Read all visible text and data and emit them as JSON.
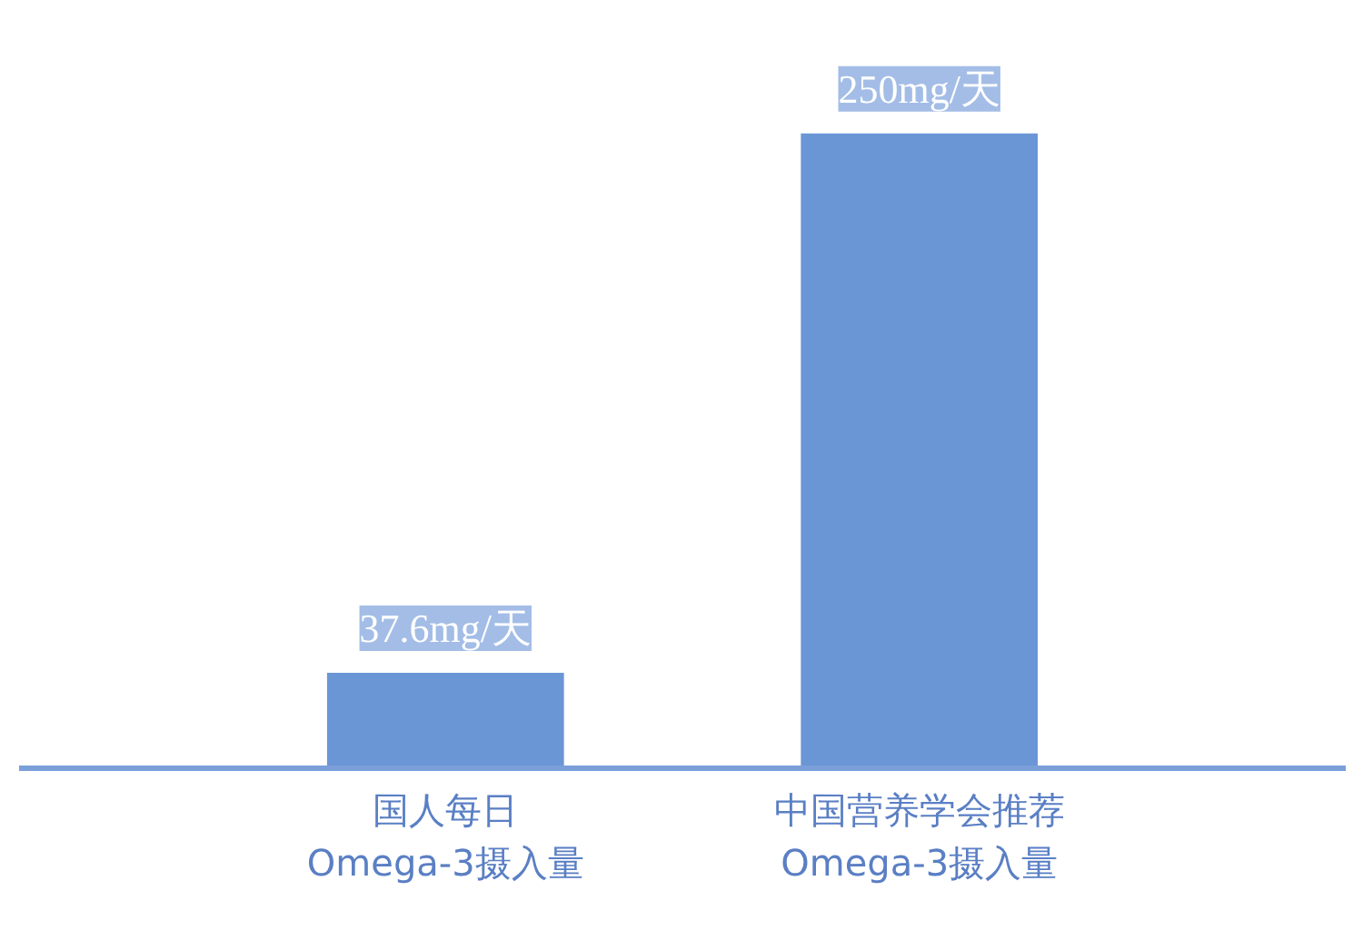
{
  "chart_data": {
    "type": "bar",
    "categories": [
      "国人每日 Omega-3摄入量",
      "中国营养学会推荐 Omega-3摄入量"
    ],
    "values": [
      37.6,
      250
    ],
    "color": "#6b96d6",
    "value_labels": [
      "37.6mg/天",
      "250mg/天"
    ],
    "grid": false
  }
}
